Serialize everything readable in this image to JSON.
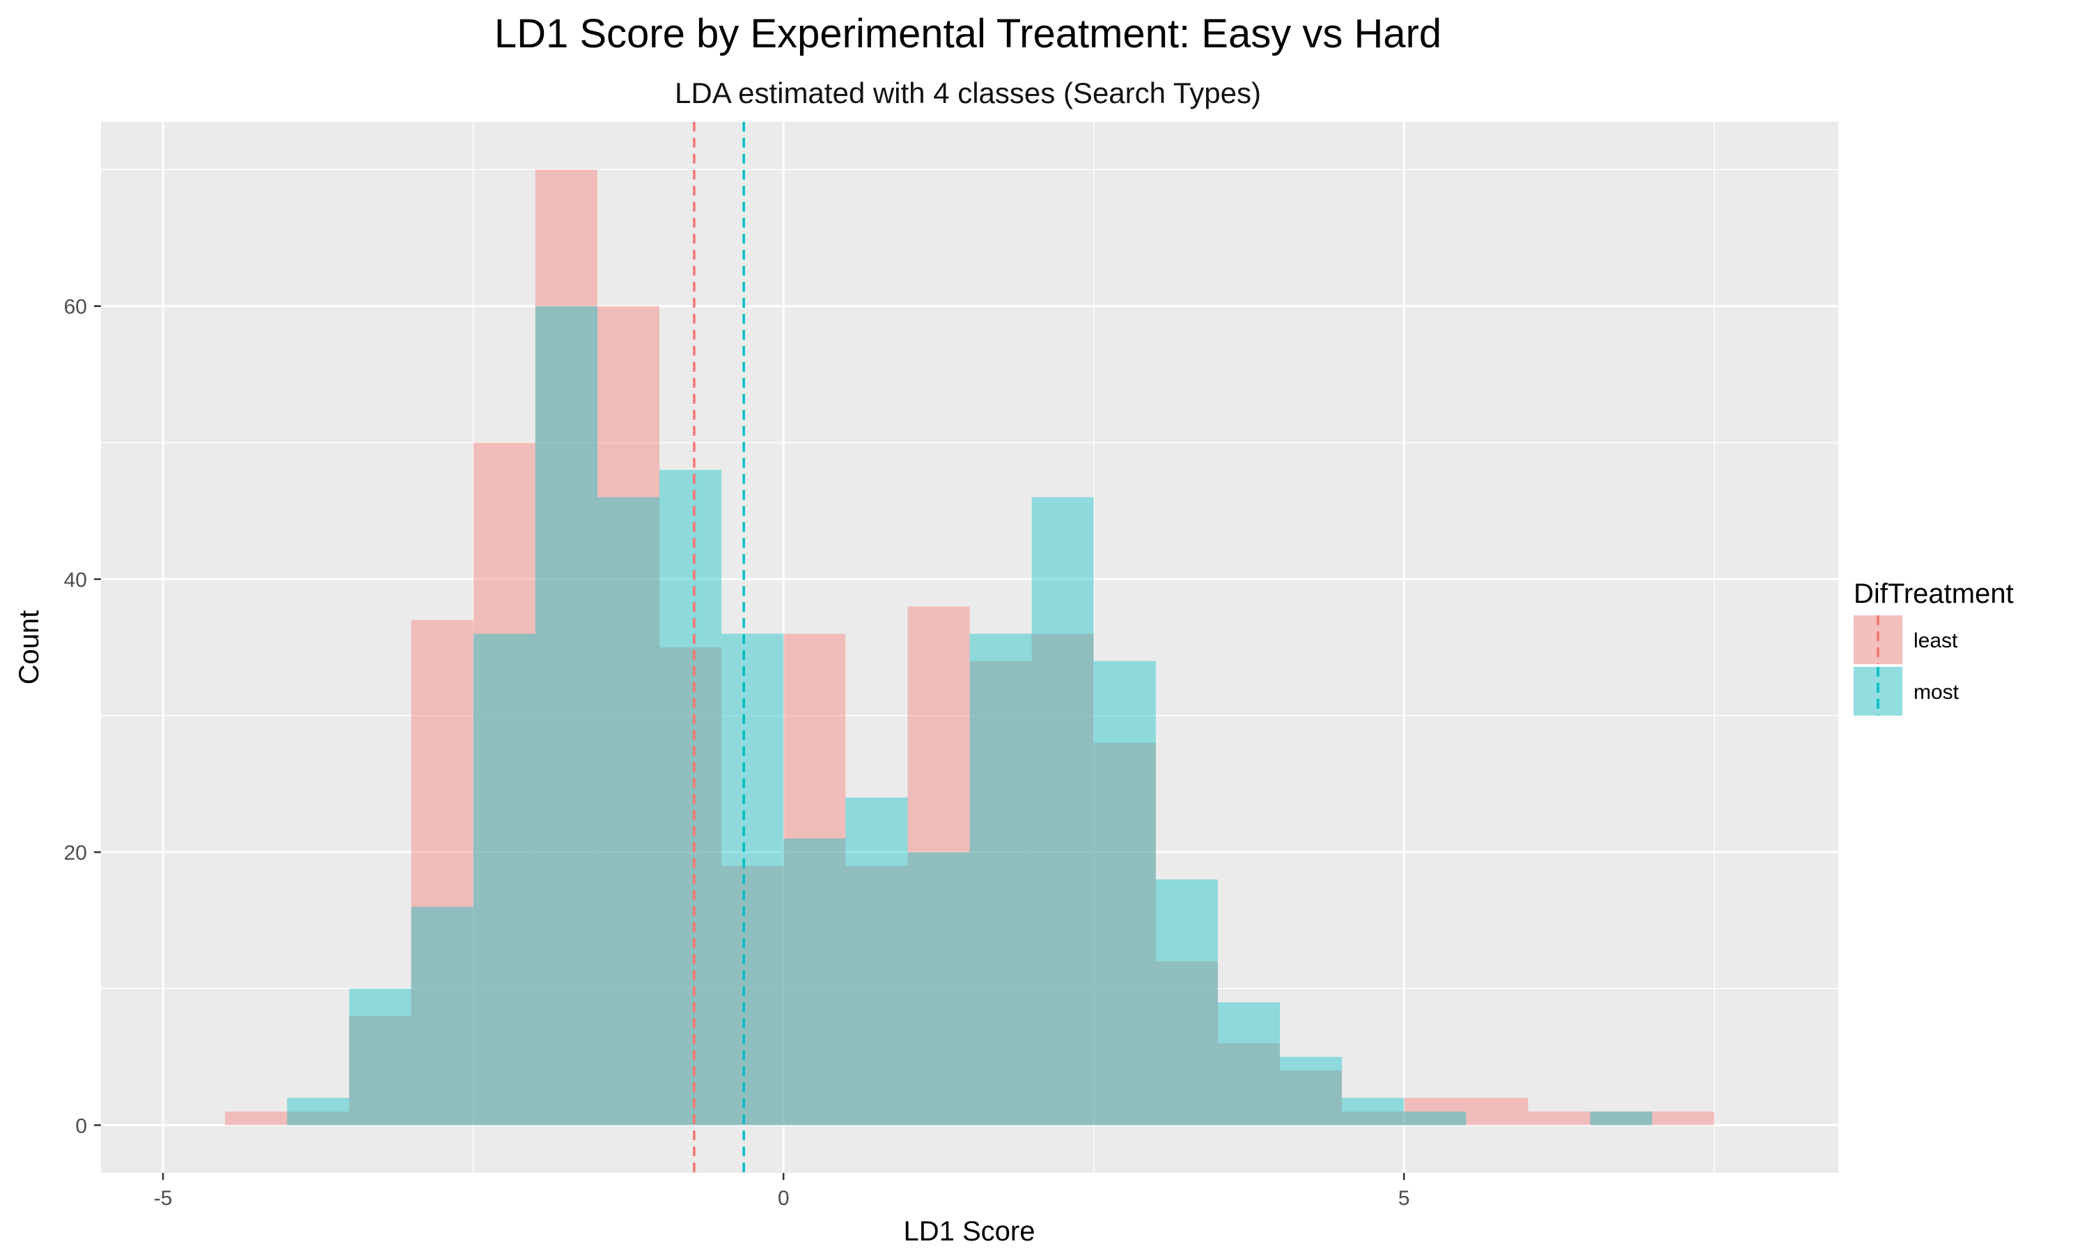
{
  "chart_data": {
    "type": "histogram",
    "title": "LD1 Score by Experimental Treatment: Easy vs Hard",
    "subtitle": "LDA estimated with 4 classes (Search Types)",
    "xlabel": "LD1 Score",
    "ylabel": "Count",
    "xlim": [
      -5.5,
      8.5
    ],
    "ylim": [
      -3.5,
      73.5
    ],
    "x_ticks": [
      -5,
      0,
      5
    ],
    "y_ticks": [
      0,
      20,
      40,
      60
    ],
    "grid": true,
    "bin_edges": [
      -4.5,
      -4.0,
      -3.5,
      -3.0,
      -2.5,
      -2.0,
      -1.5,
      -1.0,
      -0.5,
      0.0,
      0.5,
      1.0,
      1.5,
      2.0,
      2.5,
      3.0,
      3.5,
      4.0,
      4.5,
      5.0,
      5.5,
      6.0,
      6.5,
      7.0,
      7.5
    ],
    "series": [
      {
        "name": "least",
        "color": "#F8766D",
        "counts": [
          1,
          1,
          8,
          37,
          50,
          70,
          60,
          35,
          19,
          36,
          19,
          38,
          34,
          36,
          28,
          12,
          6,
          4,
          1,
          2,
          2,
          1,
          1,
          1
        ],
        "mean": -0.72
      },
      {
        "name": "most",
        "color": "#00BFC4",
        "counts": [
          0,
          2,
          10,
          16,
          36,
          60,
          46,
          48,
          36,
          21,
          24,
          20,
          36,
          46,
          34,
          18,
          9,
          5,
          2,
          1,
          0,
          0,
          1,
          0
        ],
        "mean": -0.32
      }
    ],
    "legend": {
      "title": "DifTreatment",
      "position": "right",
      "entries": [
        "least",
        "most"
      ]
    }
  }
}
